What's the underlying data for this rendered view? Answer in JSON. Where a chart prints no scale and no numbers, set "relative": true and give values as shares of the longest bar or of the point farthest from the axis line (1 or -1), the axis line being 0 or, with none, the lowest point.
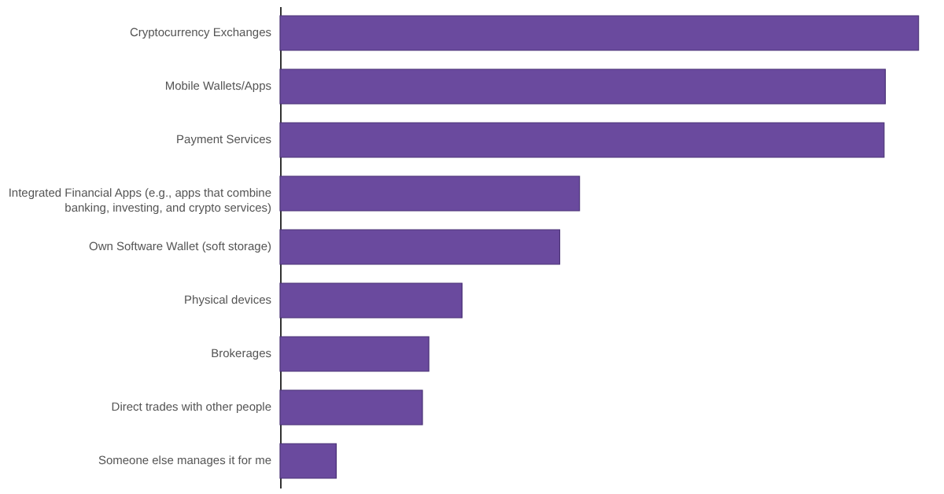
{
  "chart_data": {
    "type": "bar",
    "orientation": "horizontal",
    "relative": true,
    "color": "#6a4a9e",
    "grid": false,
    "categories": [
      "Cryptocurrency Exchanges",
      "Mobile Wallets/Apps",
      "Payment Services",
      "Integrated Financial Apps (e.g., apps that combine banking, investing, and crypto services)",
      "Own Software Wallet (soft storage)",
      "Physical devices",
      "Brokerages",
      "Direct trades with other people",
      "Someone else manages it for me"
    ],
    "values": [
      1,
      0.948,
      0.946,
      0.469,
      0.438,
      0.285,
      0.233,
      0.223,
      0.088
    ]
  }
}
